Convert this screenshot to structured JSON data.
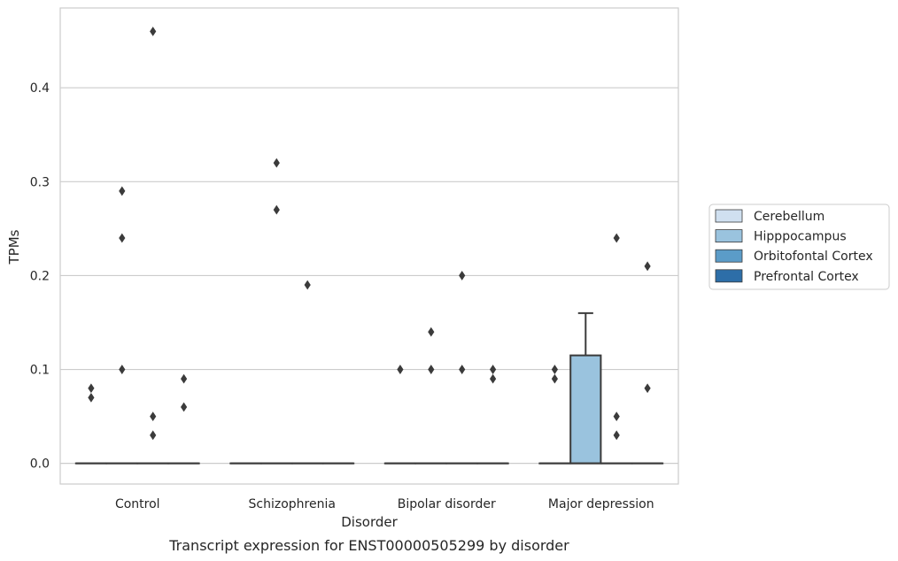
{
  "chart_data": {
    "type": "box",
    "caption": "Transcript expression for ENST00000505299 by disorder",
    "xlabel": "Disorder",
    "ylabel": "TPMs",
    "ylim": [
      -0.022,
      0.485
    ],
    "yticks": [
      "0.0",
      "0.1",
      "0.2",
      "0.3",
      "0.4"
    ],
    "categories": [
      "Control",
      "Schizophrenia",
      "Bipolar disorder",
      "Major depression"
    ],
    "grid": "horizontal",
    "legend_position": "right",
    "series": [
      {
        "name": "Cerebellum",
        "color": "#d0e0f0",
        "boxes": [
          {
            "q1": 0,
            "median": 0,
            "q3": 0,
            "whisker_low": 0,
            "whisker_high": 0,
            "outliers": [
              0.08,
              0.07
            ]
          },
          {
            "q1": 0,
            "median": 0,
            "q3": 0,
            "whisker_low": 0,
            "whisker_high": 0,
            "outliers": []
          },
          {
            "q1": 0,
            "median": 0,
            "q3": 0,
            "whisker_low": 0,
            "whisker_high": 0,
            "outliers": [
              0.1
            ]
          },
          {
            "q1": 0,
            "median": 0,
            "q3": 0,
            "whisker_low": 0,
            "whisker_high": 0,
            "outliers": [
              0.1,
              0.09
            ]
          }
        ]
      },
      {
        "name": "Hipppocampus",
        "color": "#9ac3de",
        "boxes": [
          {
            "q1": 0,
            "median": 0,
            "q3": 0,
            "whisker_low": 0,
            "whisker_high": 0,
            "outliers": [
              0.29,
              0.24,
              0.1
            ]
          },
          {
            "q1": 0,
            "median": 0,
            "q3": 0,
            "whisker_low": 0,
            "whisker_high": 0,
            "outliers": [
              0.32,
              0.27
            ]
          },
          {
            "q1": 0,
            "median": 0,
            "q3": 0,
            "whisker_low": 0,
            "whisker_high": 0,
            "outliers": [
              0.14,
              0.1
            ]
          },
          {
            "q1": 0,
            "median": 0,
            "q3": 0.115,
            "whisker_low": 0,
            "whisker_high": 0.16,
            "outliers": []
          }
        ]
      },
      {
        "name": "Orbitofontal Cortex",
        "color": "#5b9cc8",
        "boxes": [
          {
            "q1": 0,
            "median": 0,
            "q3": 0,
            "whisker_low": 0,
            "whisker_high": 0,
            "outliers": [
              0.46,
              0.05,
              0.03
            ]
          },
          {
            "q1": 0,
            "median": 0,
            "q3": 0,
            "whisker_low": 0,
            "whisker_high": 0,
            "outliers": [
              0.19
            ]
          },
          {
            "q1": 0,
            "median": 0,
            "q3": 0,
            "whisker_low": 0,
            "whisker_high": 0,
            "outliers": [
              0.2,
              0.1
            ]
          },
          {
            "q1": 0,
            "median": 0,
            "q3": 0,
            "whisker_low": 0,
            "whisker_high": 0,
            "outliers": [
              0.24,
              0.05,
              0.03
            ]
          }
        ]
      },
      {
        "name": "Prefrontal Cortex",
        "color": "#2d6ea8",
        "boxes": [
          {
            "q1": 0,
            "median": 0,
            "q3": 0,
            "whisker_low": 0,
            "whisker_high": 0,
            "outliers": [
              0.09,
              0.06
            ]
          },
          {
            "q1": 0,
            "median": 0,
            "q3": 0,
            "whisker_low": 0,
            "whisker_high": 0,
            "outliers": []
          },
          {
            "q1": 0,
            "median": 0,
            "q3": 0,
            "whisker_low": 0,
            "whisker_high": 0,
            "outliers": [
              0.1,
              0.09
            ]
          },
          {
            "q1": 0,
            "median": 0,
            "q3": 0,
            "whisker_low": 0,
            "whisker_high": 0,
            "outliers": [
              0.21,
              0.08
            ]
          }
        ]
      }
    ]
  }
}
